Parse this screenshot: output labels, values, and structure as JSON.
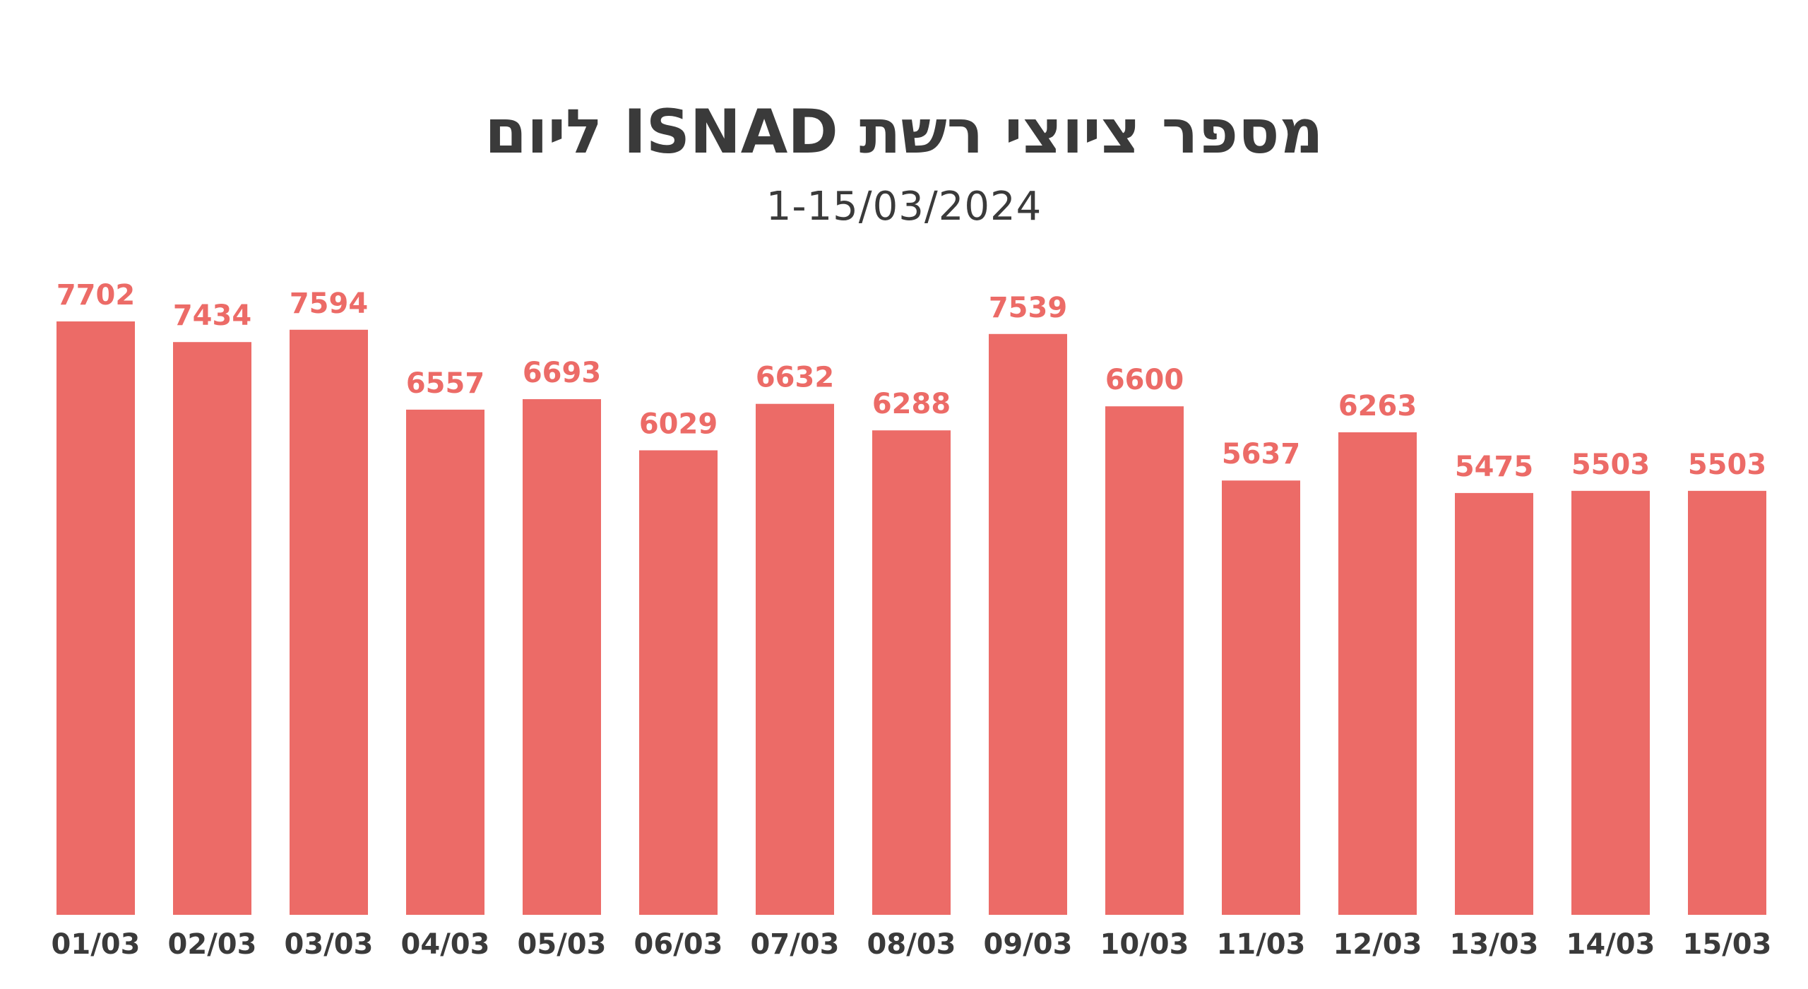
{
  "chart_data": {
    "type": "bar",
    "title": "מספר ציוצי רשת ISNAD ליום",
    "subtitle": "1-15/03/2024",
    "categories": [
      "01/03",
      "02/03",
      "03/03",
      "04/03",
      "05/03",
      "06/03",
      "07/03",
      "08/03",
      "09/03",
      "10/03",
      "11/03",
      "12/03",
      "13/03",
      "14/03",
      "15/03"
    ],
    "values": [
      7702,
      7434,
      7594,
      6557,
      6693,
      6029,
      6632,
      6288,
      7539,
      6600,
      5637,
      6263,
      5475,
      5503,
      5503
    ],
    "xlabel": "",
    "ylabel": "",
    "ylim": [
      0,
      7702
    ],
    "grid": false,
    "legend": "none",
    "bar_color": "#ec6b67",
    "text_color": "#3a3a3a"
  }
}
